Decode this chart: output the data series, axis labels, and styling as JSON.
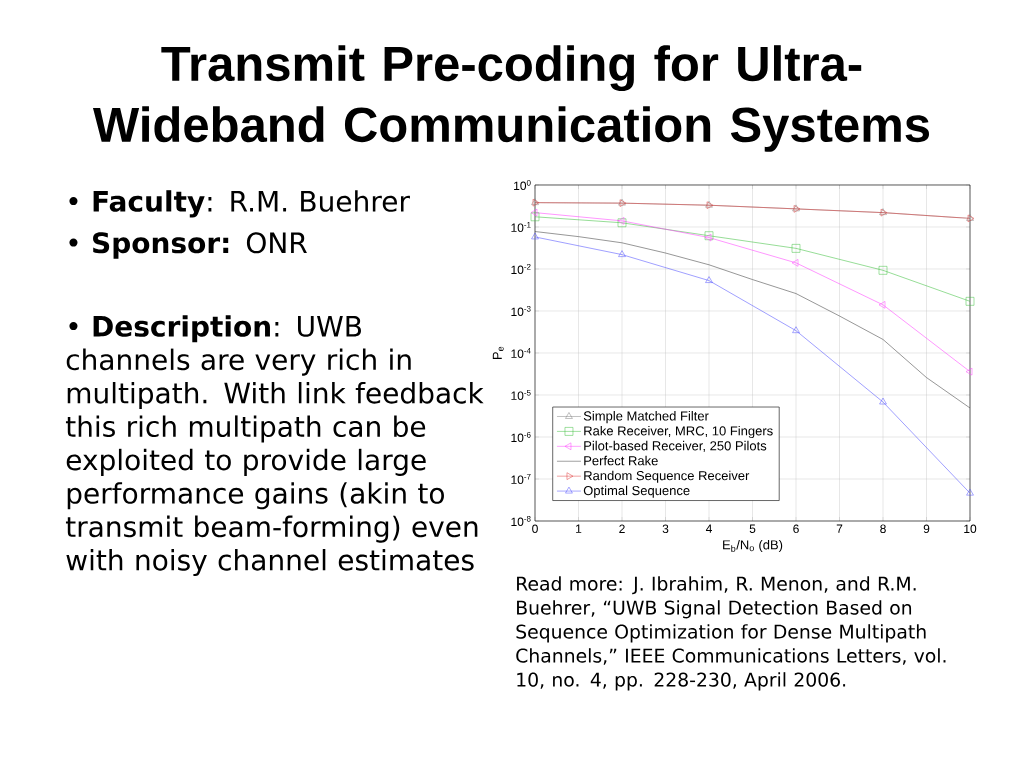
{
  "chart_data": {
    "type": "line",
    "title": "Transmit Pre-coding for Ultra-Wideband Communication Systems",
    "annotations": [
      "• **Faculty**: R.M. Buehrer",
      "• **Sponsor:** ONR",
      "• **Description**: UWB channels are very rich in multipath. With link feedback this rich multipath can be exploited to provide large performance gains (akin to transmit beam-forming) even with noisy channel estimates",
      "Read more: J. Ibrahim, R. Menon, and R.M. Buehrer, “UWB Signal Detection Based on Sequence Optimization for Dense Multipath Channels,” IEEE Communications Letters, vol. 10, no. 4, pp. 228-230, April 2006."
    ],
    "xlabel": "E$_{b}$/N$_{o}$ (dB)",
    "ylabel": "P$_{e}$",
    "x": [
      0,
      2,
      4,
      6,
      8,
      10
    ],
    "series": [
      {
        "name": "Simple Matched Filter",
        "color": "#808080",
        "marker": "triangle",
        "values": [
          0.38,
          0.37,
          0.33,
          0.27,
          0.22,
          0.16
        ]
      },
      {
        "name": "Rake Receiver, MRC, 10 Fingers",
        "color": "#40c040",
        "marker": "square",
        "values": [
          0.175,
          0.126,
          0.062,
          0.031,
          0.0093,
          0.0017
        ]
      },
      {
        "name": "Pilot-based Receiver, 250 Pilots",
        "color": "#ff40ff",
        "marker": "triangle-left",
        "values": [
          0.22,
          0.14,
          0.056,
          0.014,
          0.0014,
          3.6e-05
        ]
      },
      {
        "name": "Perfect Rake",
        "color": "#404040",
        "marker": "none",
        "x": [
          0,
          1,
          2,
          3,
          4,
          5,
          6,
          7,
          8,
          9,
          10
        ],
        "values": [
          0.078,
          0.059,
          0.042,
          0.024,
          0.0126,
          0.0056,
          0.0026,
          0.00076,
          0.00021,
          2.6e-05,
          4.9e-06
        ]
      },
      {
        "name": "Random Sequence Receiver",
        "color": "#e04040",
        "marker": "triangle-right",
        "values": [
          0.38,
          0.37,
          0.33,
          0.27,
          0.22,
          0.16
        ]
      },
      {
        "name": "Optimal Sequence",
        "color": "#5050ff",
        "marker": "triangle",
        "values": [
          0.058,
          0.022,
          0.0053,
          0.00034,
          6.8e-06,
          4.6e-08
        ]
      }
    ],
    "xlim": [
      0,
      10
    ],
    "xticks": [
      0,
      1,
      2,
      3,
      4,
      5,
      6,
      7,
      8,
      9,
      10
    ],
    "ylim": [
      1e-08,
      1
    ],
    "yticks": [
      {
        "value": 1,
        "label": "10$^{0}$"
      },
      {
        "value": 0.1,
        "label": "10$^{-1}$"
      },
      {
        "value": 0.01,
        "label": "10$^{-2}$"
      },
      {
        "value": 0.001,
        "label": "10$^{-3}$"
      },
      {
        "value": 0.0001,
        "label": "10$^{-4}$"
      },
      {
        "value": 1e-05,
        "label": "10$^{-5}$"
      },
      {
        "value": 1e-06,
        "label": "10$^{-6}$"
      },
      {
        "value": 1e-07,
        "label": "10$^{-7}$"
      },
      {
        "value": 1e-08,
        "label": "10$^{-8}$"
      }
    ],
    "log": "y",
    "grid": true,
    "legend": "bottom left"
  }
}
